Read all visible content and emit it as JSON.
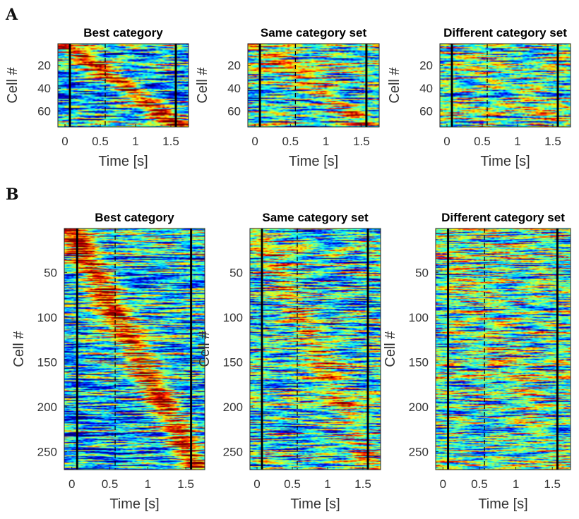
{
  "figure": {
    "panel_labels": [
      "A",
      "B"
    ]
  },
  "chart_data": [
    {
      "type": "heatmap",
      "panel": "A",
      "title": "Best category",
      "xlabel": "Time [s]",
      "ylabel": "Cell #",
      "xlim": [
        -0.1,
        1.75
      ],
      "x_ticks": [
        "0",
        "0.5",
        "1",
        "1.5"
      ],
      "y_ticks": [
        "20",
        "40",
        "60"
      ],
      "ylim": [
        1,
        74
      ],
      "event_lines_solid_s": [
        0.07,
        1.57
      ],
      "event_lines_dashed_s": [
        0.57
      ],
      "pattern": "diagonal",
      "strength": 1.0,
      "colormap": "jet"
    },
    {
      "type": "heatmap",
      "panel": "A",
      "title": "Same category set",
      "xlabel": "Time [s]",
      "ylabel": "Cell #",
      "xlim": [
        -0.1,
        1.75
      ],
      "x_ticks": [
        "0",
        "0.5",
        "1",
        "1.5"
      ],
      "y_ticks": [
        "20",
        "40",
        "60"
      ],
      "ylim": [
        1,
        74
      ],
      "event_lines_solid_s": [
        0.07,
        1.57
      ],
      "event_lines_dashed_s": [
        0.57
      ],
      "pattern": "diagonal",
      "strength": 0.45,
      "colormap": "jet"
    },
    {
      "type": "heatmap",
      "panel": "A",
      "title": "Different category set",
      "xlabel": "Time [s]",
      "ylabel": "Cell #",
      "xlim": [
        -0.1,
        1.75
      ],
      "x_ticks": [
        "0",
        "0.5",
        "1",
        "1.5"
      ],
      "y_ticks": [
        "20",
        "40",
        "60"
      ],
      "ylim": [
        1,
        74
      ],
      "event_lines_solid_s": [
        0.07,
        1.57
      ],
      "event_lines_dashed_s": [
        0.57
      ],
      "pattern": "diagonal",
      "strength": 0.15,
      "colormap": "jet"
    },
    {
      "type": "heatmap",
      "panel": "B",
      "title": "Best category",
      "xlabel": "Time [s]",
      "ylabel": "Cell #",
      "xlim": [
        -0.1,
        1.75
      ],
      "x_ticks": [
        "0",
        "0.5",
        "1",
        "1.5"
      ],
      "y_ticks": [
        "50",
        "100",
        "150",
        "200",
        "250"
      ],
      "ylim": [
        1,
        270
      ],
      "event_lines_solid_s": [
        0.07,
        1.57
      ],
      "event_lines_dashed_s": [
        0.57
      ],
      "pattern": "diagonal",
      "strength": 1.0,
      "colormap": "jet"
    },
    {
      "type": "heatmap",
      "panel": "B",
      "title": "Same category set",
      "xlabel": "Time [s]",
      "ylabel": "Cell #",
      "xlim": [
        -0.1,
        1.75
      ],
      "x_ticks": [
        "0",
        "0.5",
        "1",
        "1.5"
      ],
      "y_ticks": [
        "50",
        "100",
        "150",
        "200",
        "250"
      ],
      "ylim": [
        1,
        270
      ],
      "event_lines_solid_s": [
        0.07,
        1.57
      ],
      "event_lines_dashed_s": [
        0.57
      ],
      "pattern": "diagonal",
      "strength": 0.45,
      "colormap": "jet"
    },
    {
      "type": "heatmap",
      "panel": "B",
      "title": "Different category set",
      "xlabel": "Time [s]",
      "ylabel": "Cell #",
      "xlim": [
        -0.1,
        1.75
      ],
      "x_ticks": [
        "0",
        "0.5",
        "1",
        "1.5"
      ],
      "y_ticks": [
        "50",
        "100",
        "150",
        "200",
        "250"
      ],
      "ylim": [
        1,
        270
      ],
      "event_lines_solid_s": [
        0.07,
        1.57
      ],
      "event_lines_dashed_s": [
        0.57
      ],
      "pattern": "diagonal",
      "strength": 0.15,
      "colormap": "jet"
    }
  ]
}
